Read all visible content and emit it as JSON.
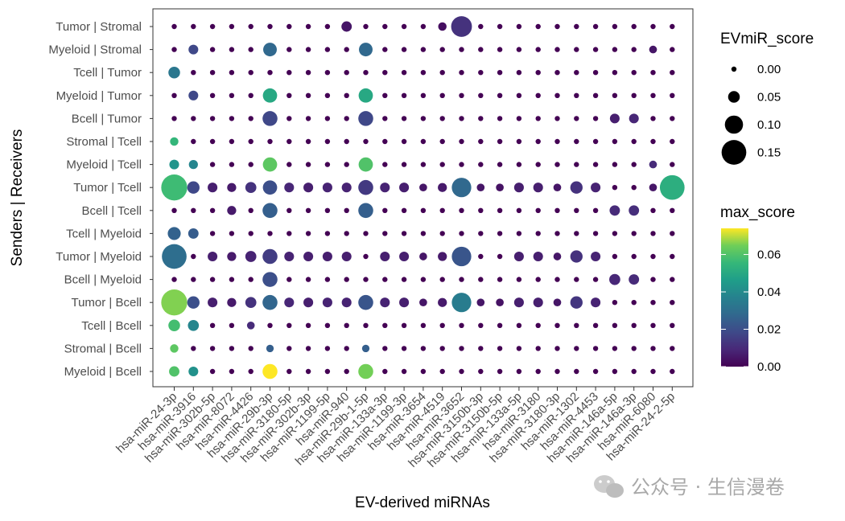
{
  "chart_data": {
    "type": "scatter",
    "subtype": "dot-plot",
    "xlabel": "EV-derived miRNAs",
    "ylabel": "Senders | Receivers",
    "x_categories": [
      "hsa-miR-24-3p",
      "hsa-miR-3916",
      "hsa-miR-302b-5p",
      "hsa-miR-8072",
      "hsa-miR-4426",
      "hsa-miR-29b-3p",
      "hsa-miR-3180-5p",
      "hsa-miR-302b-3p",
      "hsa-miR-1199-5p",
      "hsa-miR-940",
      "hsa-miR-29b-1-5p",
      "hsa-miR-133a-3p",
      "hsa-miR-1199-3p",
      "hsa-miR-3654",
      "hsa-miR-4519",
      "hsa-miR-3652",
      "hsa-miR-3150b-3p",
      "hsa-miR-3150b-5p",
      "hsa-miR-133a-5p",
      "hsa-miR-3180",
      "hsa-miR-3180-3p",
      "hsa-miR-1302",
      "hsa-miR-4453",
      "hsa-miR-146a-5p",
      "hsa-miR-146a-3p",
      "hsa-miR-6080",
      "hsa-miR-24-2-5p"
    ],
    "y_categories": [
      "Tumor | Stromal",
      "Myeloid | Stromal",
      "Tcell | Tumor",
      "Myeloid | Tumor",
      "Bcell | Tumor",
      "Stromal | Tcell",
      "Myeloid | Tcell",
      "Tumor | Tcell",
      "Bcell | Tcell",
      "Tcell | Myeloid",
      "Tumor | Myeloid",
      "Bcell | Myeloid",
      "Tumor | Bcell",
      "Tcell | Bcell",
      "Stromal | Bcell",
      "Myeloid | Bcell"
    ],
    "size_legend": {
      "title": "EVmiR_score",
      "breaks": [
        0.0,
        0.05,
        0.1,
        0.15
      ],
      "labels": [
        "0.00",
        "0.05",
        "0.10",
        "0.15"
      ]
    },
    "color_legend": {
      "title": "max_score",
      "range": [
        0,
        0.074
      ],
      "breaks": [
        0.0,
        0.02,
        0.04,
        0.06
      ],
      "labels": [
        "0.00",
        "0.02",
        "0.04",
        "0.06"
      ],
      "palette": "viridis"
    },
    "grid": false,
    "points": [
      {
        "y": "Tumor | Stromal",
        "v": [
          [
            9,
            0.04,
            0.005
          ],
          [
            15,
            0.12,
            0.012
          ]
        ],
        "misc": {
          "14": [
            0.025,
            0.003
          ]
        }
      },
      {
        "y": "Myeloid | Stromal",
        "v": [
          [
            1,
            0.035,
            0.018
          ],
          [
            5,
            0.065,
            0.028
          ],
          [
            10,
            0.065,
            0.028
          ],
          [
            25,
            0.02,
            0.005
          ]
        ]
      },
      {
        "y": "Tcell | Tumor",
        "v": [
          [
            0,
            0.05,
            0.033
          ]
        ]
      },
      {
        "y": "Myeloid | Tumor",
        "v": [
          [
            1,
            0.035,
            0.018
          ],
          [
            5,
            0.07,
            0.05
          ],
          [
            10,
            0.07,
            0.05
          ]
        ]
      },
      {
        "y": "Bcell | Tumor",
        "v": [
          [
            5,
            0.075,
            0.018
          ],
          [
            10,
            0.075,
            0.018
          ],
          [
            23,
            0.035,
            0.007
          ],
          [
            24,
            0.035,
            0.009
          ]
        ]
      },
      {
        "y": "Stromal | Tcell",
        "v": [
          [
            0,
            0.025,
            0.055
          ]
        ]
      },
      {
        "y": "Myeloid | Tcell",
        "v": [
          [
            0,
            0.035,
            0.043
          ],
          [
            1,
            0.03,
            0.038
          ],
          [
            5,
            0.07,
            0.062
          ],
          [
            10,
            0.07,
            0.06
          ],
          [
            25,
            0.02,
            0.01
          ]
        ]
      },
      {
        "y": "Tumor | Tcell",
        "v": [
          [
            0,
            0.16,
            0.057
          ],
          [
            1,
            0.055,
            0.018
          ],
          [
            2,
            0.035,
            0.007
          ],
          [
            3,
            0.03,
            0.006
          ],
          [
            4,
            0.045,
            0.012
          ],
          [
            5,
            0.07,
            0.02
          ],
          [
            6,
            0.035,
            0.009
          ],
          [
            7,
            0.035,
            0.007
          ],
          [
            8,
            0.035,
            0.008
          ],
          [
            9,
            0.035,
            0.008
          ],
          [
            10,
            0.075,
            0.014
          ],
          [
            11,
            0.035,
            0.008
          ],
          [
            12,
            0.035,
            0.007
          ],
          [
            13,
            0.02,
            0.005
          ],
          [
            14,
            0.03,
            0.006
          ],
          [
            15,
            0.11,
            0.028
          ],
          [
            16,
            0.02,
            0.005
          ],
          [
            17,
            0.02,
            0.004
          ],
          [
            18,
            0.035,
            0.007
          ],
          [
            19,
            0.035,
            0.007
          ],
          [
            20,
            0.02,
            0.005
          ],
          [
            21,
            0.055,
            0.012
          ],
          [
            22,
            0.035,
            0.008
          ],
          [
            25,
            0.02,
            0.005
          ],
          [
            26,
            0.15,
            0.052
          ]
        ]
      },
      {
        "y": "Bcell | Tcell",
        "v": [
          [
            3,
            0.03,
            0.006
          ],
          [
            5,
            0.075,
            0.025
          ],
          [
            10,
            0.075,
            0.025
          ],
          [
            23,
            0.04,
            0.01
          ],
          [
            24,
            0.04,
            0.011
          ]
        ]
      },
      {
        "y": "Tcell | Myeloid",
        "v": [
          [
            0,
            0.06,
            0.026
          ],
          [
            1,
            0.04,
            0.024
          ]
        ]
      },
      {
        "y": "Tumor | Myeloid",
        "v": [
          [
            0,
            0.15,
            0.03
          ],
          [
            2,
            0.035,
            0.007
          ],
          [
            3,
            0.03,
            0.006
          ],
          [
            4,
            0.045,
            0.008
          ],
          [
            5,
            0.075,
            0.015
          ],
          [
            6,
            0.035,
            0.008
          ],
          [
            7,
            0.035,
            0.007
          ],
          [
            8,
            0.035,
            0.007
          ],
          [
            9,
            0.035,
            0.007
          ],
          [
            11,
            0.035,
            0.007
          ],
          [
            12,
            0.035,
            0.007
          ],
          [
            13,
            0.02,
            0.005
          ],
          [
            14,
            0.03,
            0.006
          ],
          [
            15,
            0.11,
            0.022
          ],
          [
            18,
            0.035,
            0.007
          ],
          [
            19,
            0.035,
            0.007
          ],
          [
            20,
            0.02,
            0.005
          ],
          [
            21,
            0.055,
            0.012
          ],
          [
            22,
            0.035,
            0.008
          ]
        ]
      },
      {
        "y": "Bcell | Myeloid",
        "v": [
          [
            5,
            0.075,
            0.02
          ],
          [
            23,
            0.045,
            0.009
          ],
          [
            24,
            0.04,
            0.01
          ]
        ]
      },
      {
        "y": "Tumor | Bcell",
        "v": [
          [
            0,
            0.16,
            0.066
          ],
          [
            1,
            0.055,
            0.02
          ],
          [
            2,
            0.035,
            0.007
          ],
          [
            3,
            0.03,
            0.006
          ],
          [
            4,
            0.045,
            0.012
          ],
          [
            5,
            0.075,
            0.027
          ],
          [
            6,
            0.035,
            0.009
          ],
          [
            7,
            0.035,
            0.007
          ],
          [
            8,
            0.035,
            0.008
          ],
          [
            9,
            0.035,
            0.008
          ],
          [
            10,
            0.075,
            0.022
          ],
          [
            11,
            0.035,
            0.008
          ],
          [
            12,
            0.035,
            0.007
          ],
          [
            13,
            0.02,
            0.005
          ],
          [
            14,
            0.03,
            0.006
          ],
          [
            15,
            0.11,
            0.035
          ],
          [
            16,
            0.02,
            0.005
          ],
          [
            17,
            0.02,
            0.004
          ],
          [
            18,
            0.035,
            0.007
          ],
          [
            19,
            0.035,
            0.007
          ],
          [
            20,
            0.02,
            0.005
          ],
          [
            21,
            0.055,
            0.013
          ],
          [
            22,
            0.035,
            0.008
          ]
        ]
      },
      {
        "y": "Tcell | Bcell",
        "v": [
          [
            0,
            0.05,
            0.058
          ],
          [
            1,
            0.045,
            0.038
          ],
          [
            4,
            0.02,
            0.01
          ]
        ]
      },
      {
        "y": "Stromal | Bcell",
        "v": [
          [
            0,
            0.025,
            0.062
          ],
          [
            5,
            0.018,
            0.025
          ],
          [
            10,
            0.018,
            0.025
          ]
        ]
      },
      {
        "y": "Myeloid | Bcell",
        "v": [
          [
            0,
            0.04,
            0.06
          ],
          [
            1,
            0.035,
            0.042
          ],
          [
            5,
            0.075,
            0.074
          ],
          [
            10,
            0.075,
            0.065
          ]
        ]
      }
    ]
  },
  "watermark": {
    "text": "公众号 · 生信漫卷",
    "icon": "wechat-icon"
  }
}
